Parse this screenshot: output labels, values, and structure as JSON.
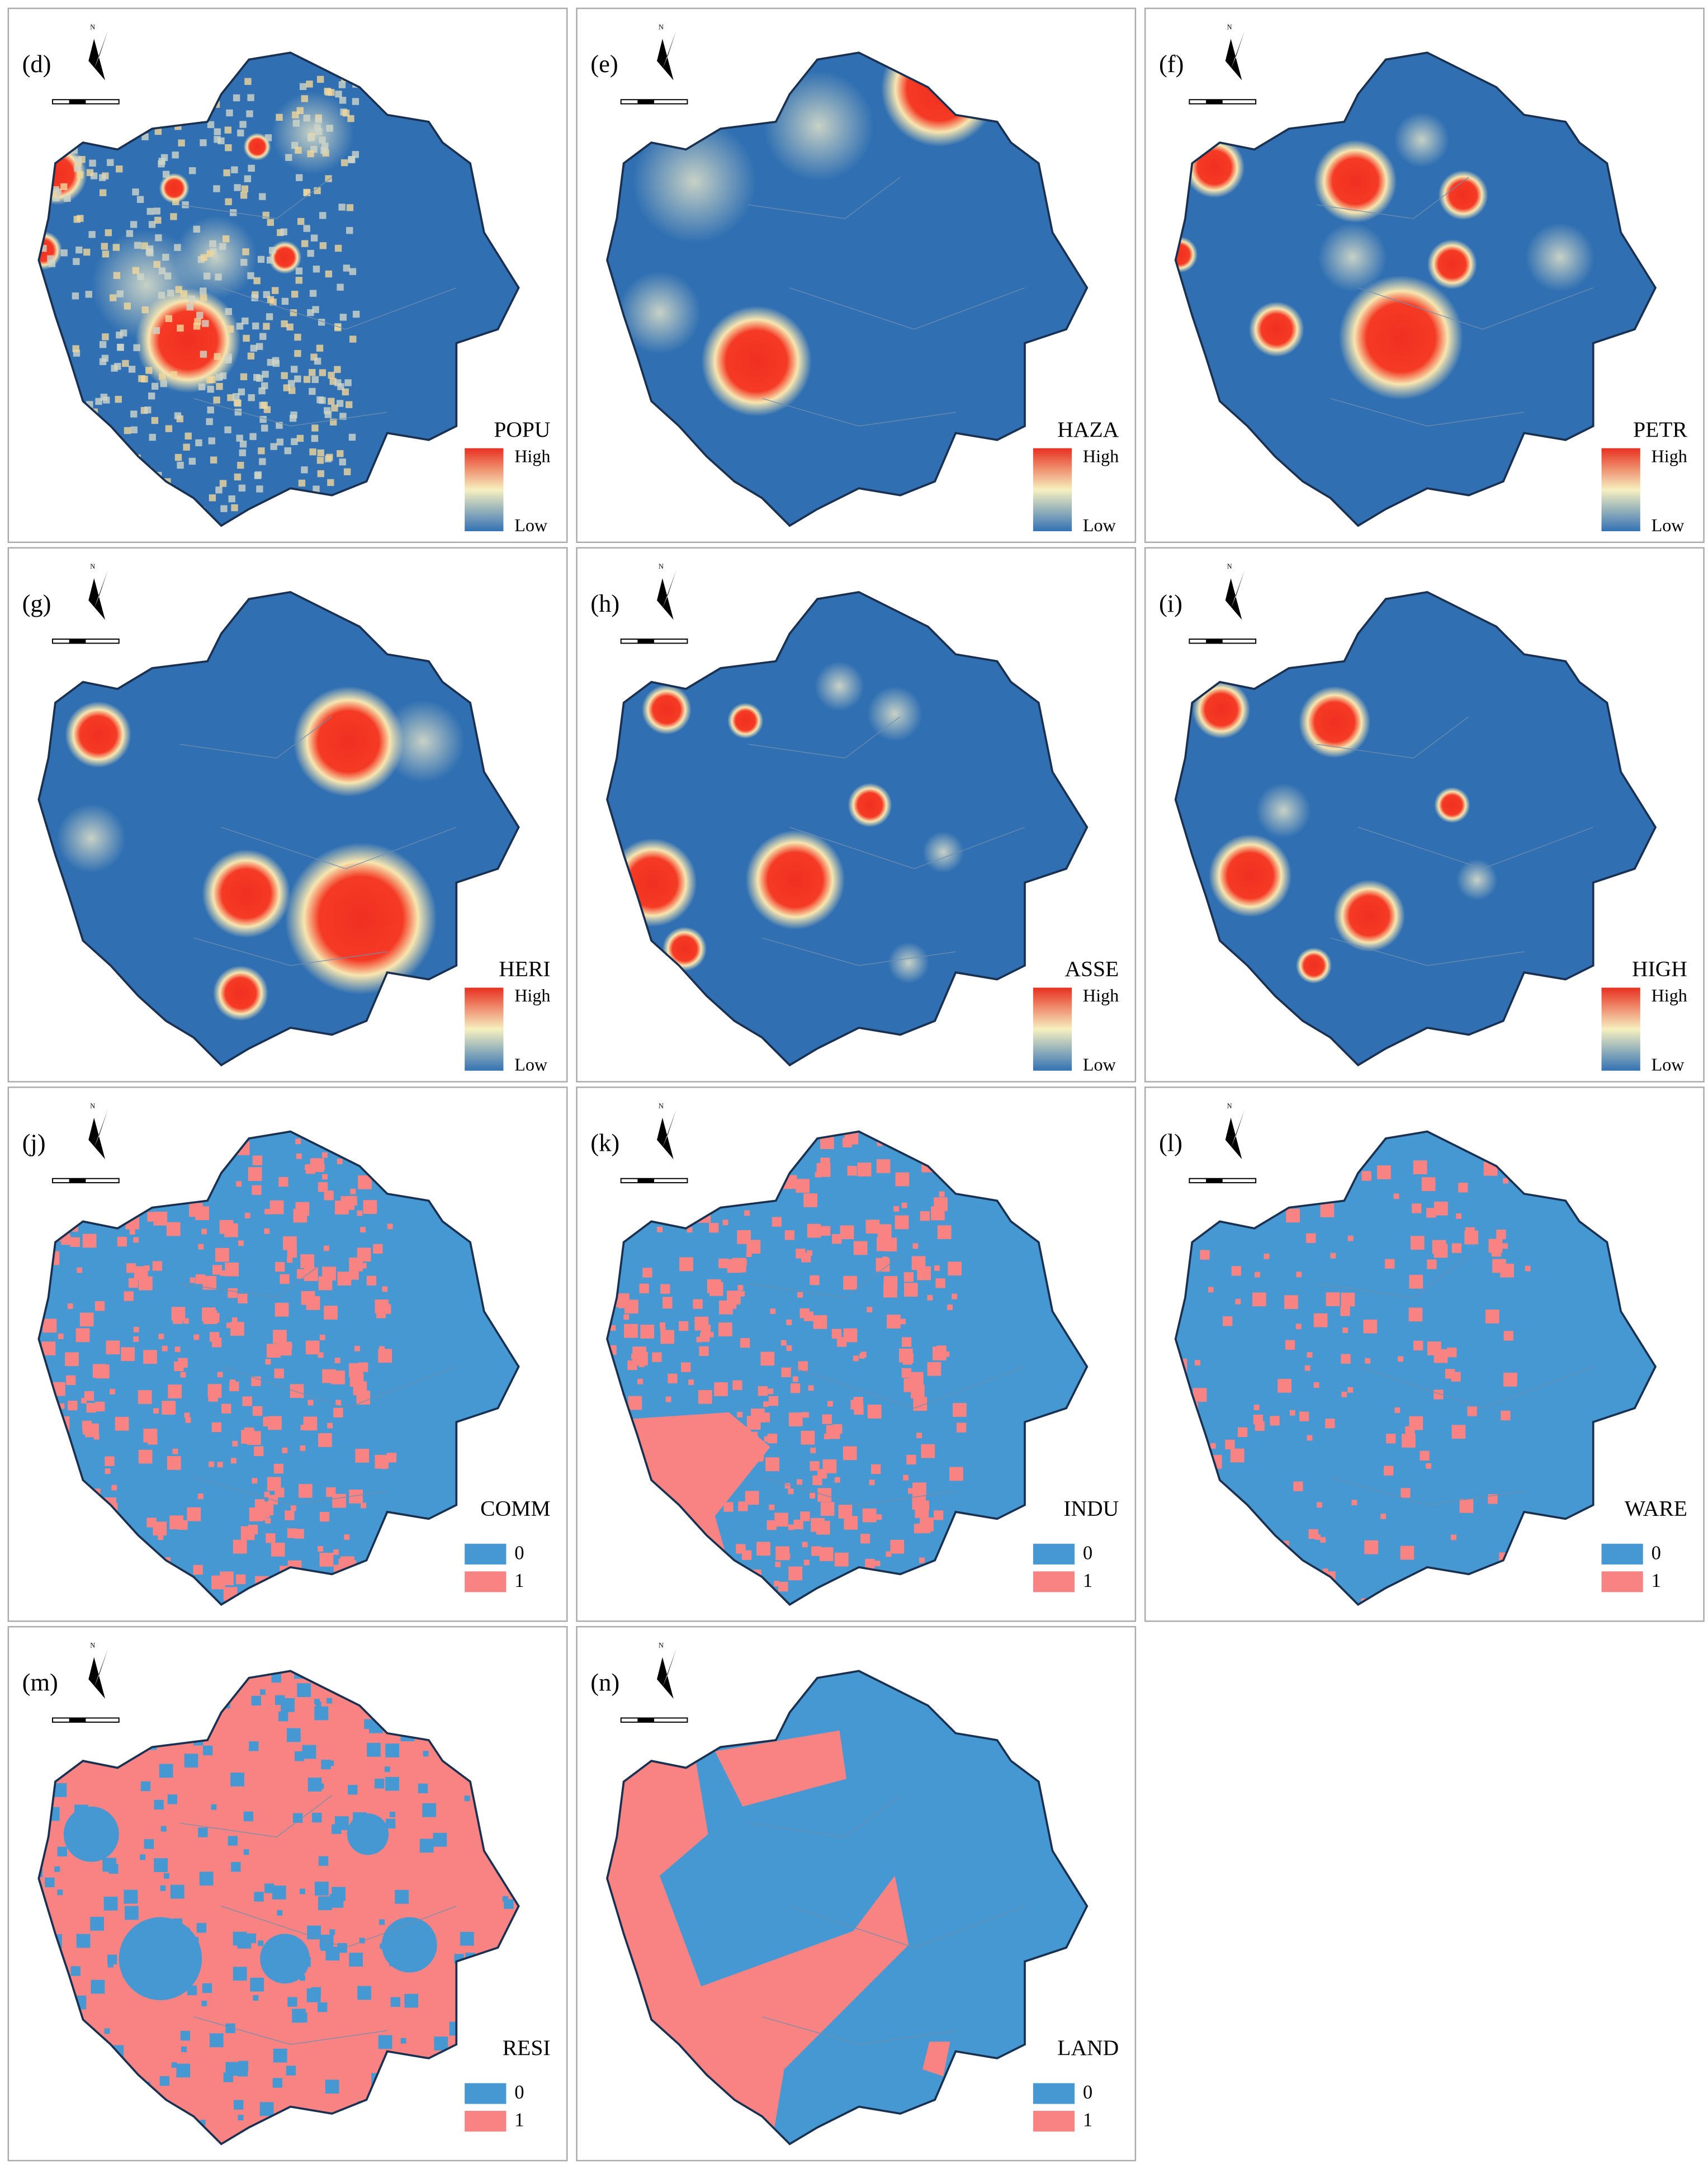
{
  "north_label": "N",
  "panels": [
    {
      "label": "(d)",
      "layer": "POPU",
      "legend": [
        "High",
        "Low"
      ]
    },
    {
      "label": "(e)",
      "layer": "HAZA",
      "legend": [
        "High",
        "Low"
      ]
    },
    {
      "label": "(f)",
      "layer": "PETR",
      "legend": [
        "High",
        "Low"
      ]
    },
    {
      "label": "(g)",
      "layer": "HERI",
      "legend": [
        "High",
        "Low"
      ]
    },
    {
      "label": "(h)",
      "layer": "ASSE",
      "legend": [
        "High",
        "Low"
      ]
    },
    {
      "label": "(i)",
      "layer": "HIGH",
      "legend": [
        "High",
        "Low"
      ]
    },
    {
      "label": "(j)",
      "layer": "COMM",
      "legend": [
        "0",
        "1"
      ]
    },
    {
      "label": "(k)",
      "layer": "INDU",
      "legend": [
        "0",
        "1"
      ]
    },
    {
      "label": "(l)",
      "layer": "WARE",
      "legend": [
        "0",
        "1"
      ]
    },
    {
      "label": "(m)",
      "layer": "RESI",
      "legend": [
        "0",
        "1"
      ]
    },
    {
      "label": "(n)",
      "layer": "LAND",
      "legend": [
        "0",
        "1"
      ]
    }
  ]
}
